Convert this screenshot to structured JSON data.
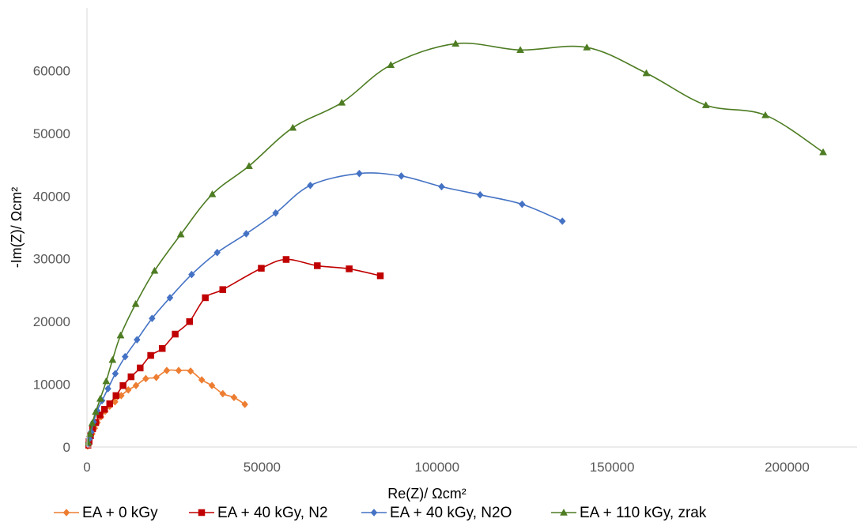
{
  "chart_data": {
    "type": "scatter",
    "xlabel": "Re(Z)/ Ωcm²",
    "ylabel": "-Im(Z)/ Ωcm²",
    "xlim": [
      0,
      220000
    ],
    "ylim": [
      0,
      70000
    ],
    "x_ticks": [
      "0",
      "50000",
      "100000",
      "150000",
      "200000"
    ],
    "y_ticks": [
      "0",
      "10000",
      "20000",
      "30000",
      "40000",
      "50000",
      "60000"
    ],
    "grid": false,
    "legend_position": "bottom",
    "series": [
      {
        "name": "EA + 0 kGy",
        "color": "#ED7D31",
        "marker": "diamond",
        "points": [
          [
            200,
            150
          ],
          [
            400,
            450
          ],
          [
            700,
            900
          ],
          [
            1000,
            1400
          ],
          [
            1500,
            2100
          ],
          [
            2200,
            3000
          ],
          [
            3000,
            3900
          ],
          [
            4000,
            4800
          ],
          [
            5200,
            5700
          ],
          [
            6500,
            6500
          ],
          [
            8000,
            7200
          ],
          [
            9800,
            8200
          ],
          [
            11800,
            9100
          ],
          [
            14000,
            9800
          ],
          [
            16800,
            10900
          ],
          [
            19800,
            11100
          ],
          [
            22800,
            12200
          ],
          [
            26200,
            12200
          ],
          [
            29600,
            12100
          ],
          [
            32800,
            10700
          ],
          [
            35700,
            9800
          ],
          [
            38800,
            8500
          ],
          [
            42000,
            7900
          ],
          [
            45100,
            6800
          ]
        ]
      },
      {
        "name": "EA + 40 kGy, N2",
        "color": "#C00000",
        "marker": "square",
        "points": [
          [
            300,
            300
          ],
          [
            600,
            900
          ],
          [
            1000,
            1800
          ],
          [
            1600,
            2900
          ],
          [
            2500,
            3900
          ],
          [
            3700,
            5100
          ],
          [
            5000,
            6000
          ],
          [
            6500,
            6900
          ],
          [
            8300,
            8200
          ],
          [
            10300,
            9800
          ],
          [
            12600,
            11200
          ],
          [
            15200,
            12600
          ],
          [
            18200,
            14600
          ],
          [
            21500,
            15700
          ],
          [
            25200,
            18000
          ],
          [
            29300,
            20000
          ],
          [
            33800,
            23800
          ],
          [
            38800,
            25100
          ],
          [
            49800,
            28500
          ],
          [
            56900,
            29900
          ],
          [
            65800,
            28900
          ],
          [
            74900,
            28400
          ],
          [
            83800,
            27300
          ]
        ]
      },
      {
        "name": "EA + 40 kGy, N2O",
        "color": "#4472C4",
        "marker": "diamond",
        "points": [
          [
            300,
            500
          ],
          [
            700,
            1300
          ],
          [
            1200,
            2400
          ],
          [
            1900,
            4000
          ],
          [
            2900,
            5800
          ],
          [
            4300,
            7400
          ],
          [
            6000,
            9300
          ],
          [
            8100,
            11700
          ],
          [
            10900,
            14400
          ],
          [
            14300,
            17100
          ],
          [
            18600,
            20500
          ],
          [
            23700,
            23800
          ],
          [
            29900,
            27500
          ],
          [
            37200,
            31000
          ],
          [
            45500,
            34000
          ],
          [
            53900,
            37300
          ],
          [
            63800,
            41700
          ],
          [
            77800,
            43600
          ],
          [
            89800,
            43200
          ],
          [
            101300,
            41500
          ],
          [
            112300,
            40200
          ],
          [
            124300,
            38700
          ],
          [
            135800,
            36000
          ]
        ]
      },
      {
        "name": "EA + 110 kGy, zrak",
        "color": "#4D7C22",
        "marker": "triangle",
        "points": [
          [
            300,
            700
          ],
          [
            800,
            2100
          ],
          [
            1500,
            3800
          ],
          [
            2500,
            5600
          ],
          [
            3800,
            7700
          ],
          [
            5500,
            10500
          ],
          [
            7300,
            13900
          ],
          [
            9600,
            17800
          ],
          [
            13900,
            22800
          ],
          [
            19300,
            28100
          ],
          [
            26800,
            33900
          ],
          [
            35800,
            40300
          ],
          [
            46300,
            44800
          ],
          [
            58800,
            50900
          ],
          [
            72800,
            54900
          ],
          [
            86800,
            60900
          ],
          [
            105300,
            64300
          ],
          [
            123800,
            63300
          ],
          [
            142800,
            63700
          ],
          [
            159800,
            59600
          ],
          [
            176800,
            54500
          ],
          [
            193800,
            52900
          ],
          [
            210300,
            47000
          ]
        ]
      }
    ]
  }
}
